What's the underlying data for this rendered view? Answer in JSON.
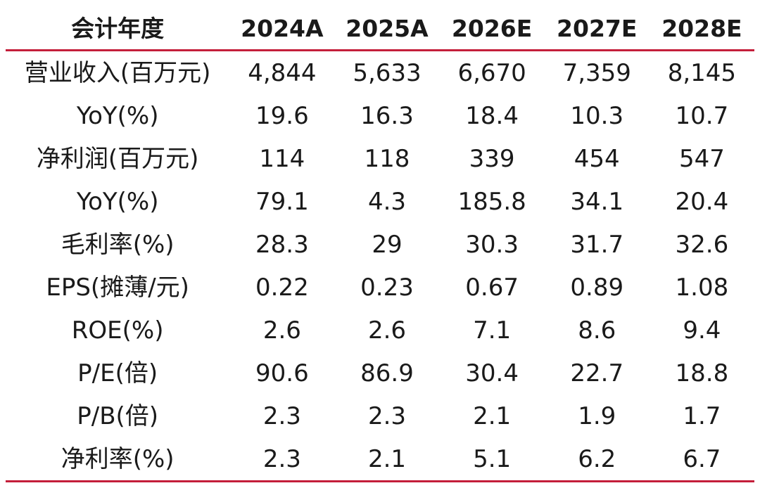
{
  "table": {
    "header": [
      "会计年度",
      "2024A",
      "2025A",
      "2026E",
      "2027E",
      "2028E"
    ],
    "rows": [
      [
        "营业收入(百万元)",
        "4,844",
        "5,633",
        "6,670",
        "7,359",
        "8,145"
      ],
      [
        "YoY(%)",
        "19.6",
        "16.3",
        "18.4",
        "10.3",
        "10.7"
      ],
      [
        "净利润(百万元)",
        "114",
        "118",
        "339",
        "454",
        "547"
      ],
      [
        "YoY(%)",
        "79.1",
        "4.3",
        "185.8",
        "34.1",
        "20.4"
      ],
      [
        "毛利率(%)",
        "28.3",
        "29",
        "30.3",
        "31.7",
        "32.6"
      ],
      [
        "EPS(摊薄/元)",
        "0.22",
        "0.23",
        "0.67",
        "0.89",
        "1.08"
      ],
      [
        "ROE(%)",
        "2.6",
        "2.6",
        "7.1",
        "8.6",
        "9.4"
      ],
      [
        "P/E(倍)",
        "90.6",
        "86.9",
        "30.4",
        "22.7",
        "18.8"
      ],
      [
        "P/B(倍)",
        "2.3",
        "2.3",
        "2.1",
        "1.9",
        "1.7"
      ],
      [
        "净利率(%)",
        "2.3",
        "2.1",
        "5.1",
        "6.2",
        "6.7"
      ]
    ]
  },
  "colors": {
    "rule": "#c41e3a",
    "text": "#1a1a1a"
  }
}
